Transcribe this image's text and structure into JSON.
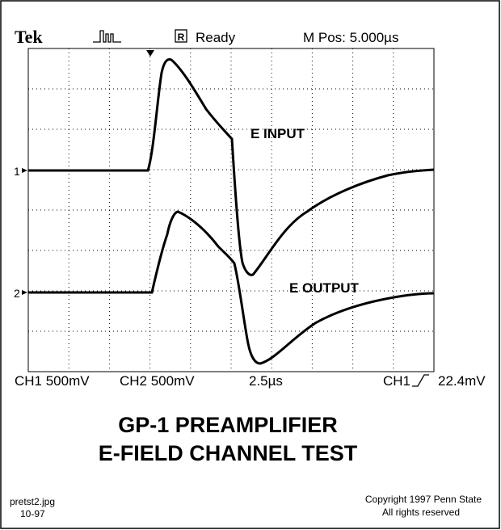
{
  "header": {
    "brand": "Tek",
    "run_mode": "R",
    "status": "Ready",
    "position": "M Pos: 5.000µs"
  },
  "traces": [
    {
      "marker": "1",
      "label": "E INPUT"
    },
    {
      "marker": "2",
      "label": "E OUTPUT"
    }
  ],
  "readout": {
    "ch1_scale": "CH1 500mV",
    "ch2_scale": "CH2 500mV",
    "timebase": "2.5µs",
    "trigger_source": "CH1",
    "trigger_level": "22.4mV"
  },
  "title": [
    "GP-1 PREAMPLIFIER",
    "E-FIELD CHANNEL TEST"
  ],
  "footer": {
    "file": "pretst2.jpg",
    "date": "10-97",
    "copyright": "Copyright 1997 Penn State",
    "rights": "All rights reserved"
  }
}
